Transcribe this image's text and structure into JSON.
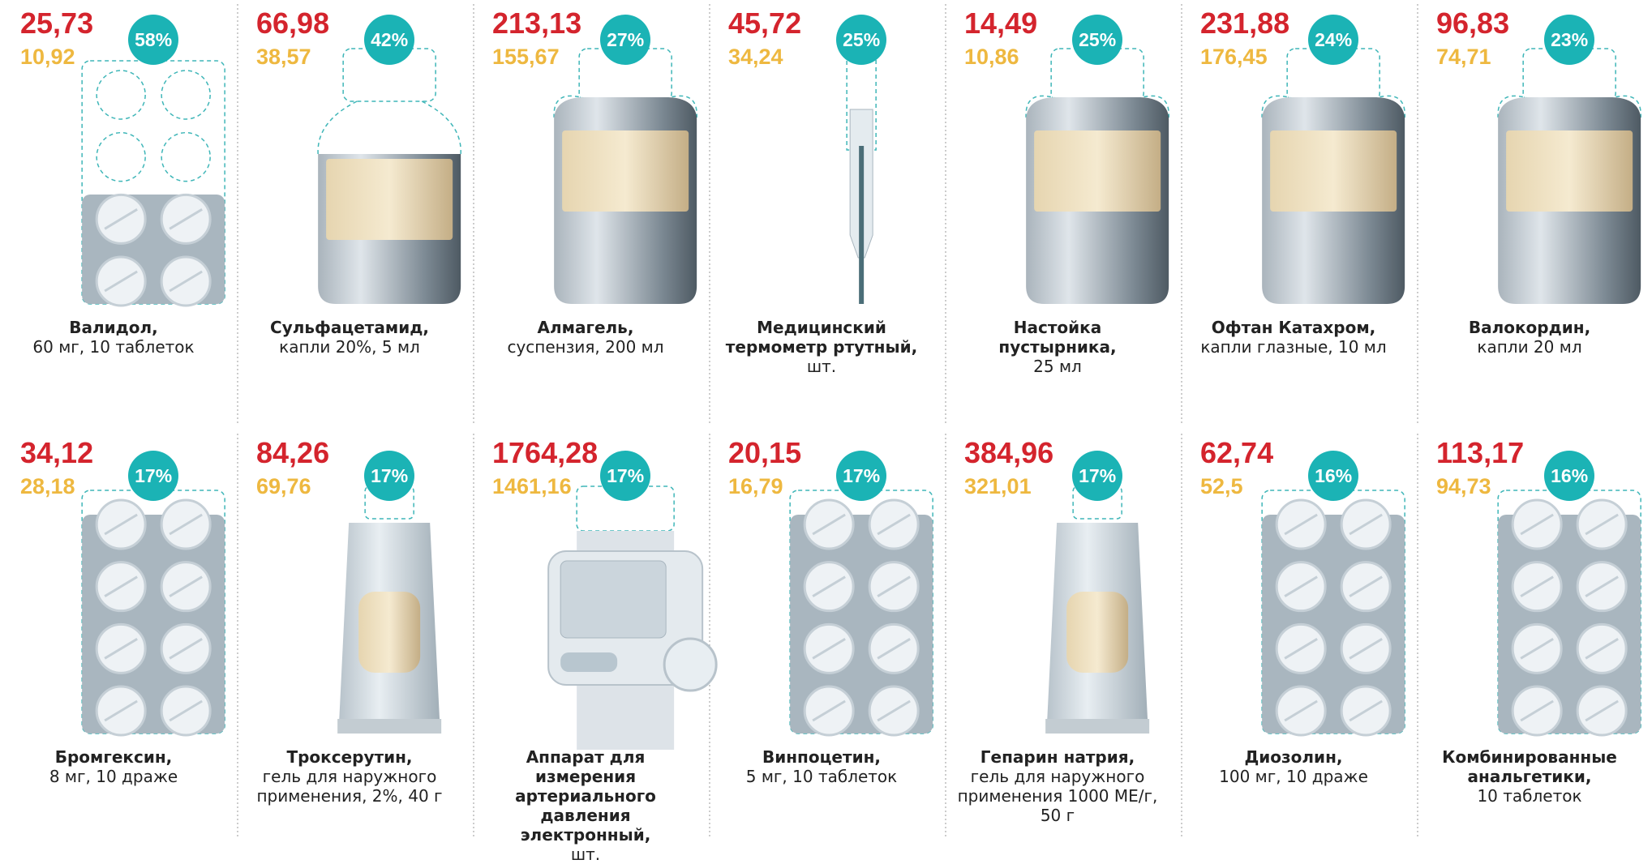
{
  "items": [
    {
      "price": "25,73",
      "old_price": "10,92",
      "badge": "58%",
      "name": "Валидол,",
      "detail": "60 мг, 10 таблеток"
    },
    {
      "price": "66,98",
      "old_price": "38,57",
      "badge": "42%",
      "name": "Сульфацетамид,",
      "detail": "капли 20%, 5 мл"
    },
    {
      "price": "213,13",
      "old_price": "155,67",
      "badge": "27%",
      "name": "Алмагель,",
      "detail": "суспензия, 200 мл"
    },
    {
      "price": "45,72",
      "old_price": "34,24",
      "badge": "25%",
      "name": "Медицинский термометр ртутный,",
      "detail": "шт."
    },
    {
      "price": "14,49",
      "old_price": "10,86",
      "badge": "25%",
      "name": "Настойка пустырника,",
      "detail": "25 мл"
    },
    {
      "price": "231,88",
      "old_price": "176,45",
      "badge": "24%",
      "name": "Офтан Катахром,",
      "detail": "капли глазные, 10 мл"
    },
    {
      "price": "96,83",
      "old_price": "74,71",
      "badge": "23%",
      "name": "Валокордин,",
      "detail": "капли 20 мл"
    },
    {
      "price": "34,12",
      "old_price": "28,18",
      "badge": "17%",
      "name": "Бромгексин,",
      "detail": "8 мг, 10 драже"
    },
    {
      "price": "84,26",
      "old_price": "69,76",
      "badge": "17%",
      "name": "Троксерутин,",
      "detail": "гель для наружного применения, 2%, 40 г"
    },
    {
      "price": "1764,28",
      "old_price": "1461,16",
      "badge": "17%",
      "name": "Аппарат для измерения артериального давления электронный,",
      "detail": "шт."
    },
    {
      "price": "20,15",
      "old_price": "16,79",
      "badge": "17%",
      "name": "Винпоцетин,",
      "detail": "5 мг, 10 таблеток"
    },
    {
      "price": "384,96",
      "old_price": "321,01",
      "badge": "17%",
      "name": "Гепарин натрия,",
      "detail": "гель для наружного применения 1000 МЕ/г, 50 г"
    },
    {
      "price": "62,74",
      "old_price": "52,5",
      "badge": "16%",
      "name": "Диозолин,",
      "detail": "100 мг, 10 драже"
    },
    {
      "price": "113,17",
      "old_price": "94,73",
      "badge": "16%",
      "name": "Комбинированные анальгетики,",
      "detail": "10 таблеток"
    }
  ]
}
